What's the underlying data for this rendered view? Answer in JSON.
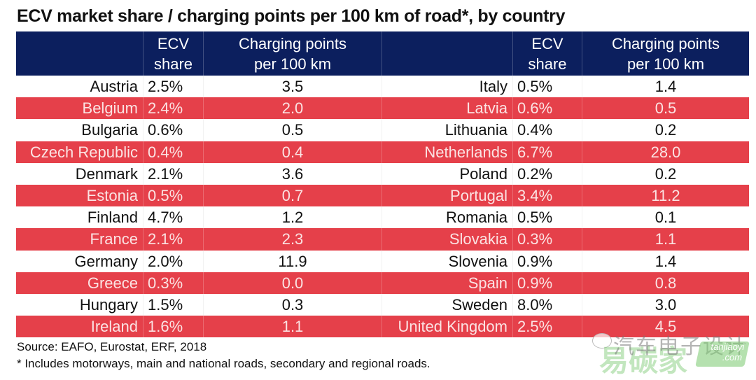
{
  "title": "ECV market share / charging points per 100 km of road*, by country",
  "header": {
    "ecv_line1": "ECV",
    "ecv_line2": "share",
    "cp_line1": "Charging points",
    "cp_line2": "per 100 km"
  },
  "colors": {
    "header_bg": "#0c1f5e",
    "stripe_red": "#e5404a",
    "stripe_white": "#ffffff"
  },
  "left_rows": [
    {
      "country": "Austria",
      "ecv_share": "2.5%",
      "charging_points": "3.5"
    },
    {
      "country": "Belgium",
      "ecv_share": "2.4%",
      "charging_points": "2.0"
    },
    {
      "country": "Bulgaria",
      "ecv_share": "0.6%",
      "charging_points": "0.5"
    },
    {
      "country": "Czech Republic",
      "ecv_share": "0.4%",
      "charging_points": "0.4"
    },
    {
      "country": "Denmark",
      "ecv_share": "2.1%",
      "charging_points": "3.6"
    },
    {
      "country": "Estonia",
      "ecv_share": "0.5%",
      "charging_points": "0.7"
    },
    {
      "country": "Finland",
      "ecv_share": "4.7%",
      "charging_points": "1.2"
    },
    {
      "country": "France",
      "ecv_share": "2.1%",
      "charging_points": "2.3"
    },
    {
      "country": "Germany",
      "ecv_share": "2.0%",
      "charging_points": "11.9"
    },
    {
      "country": "Greece",
      "ecv_share": "0.3%",
      "charging_points": "0.0"
    },
    {
      "country": "Hungary",
      "ecv_share": "1.5%",
      "charging_points": "0.3"
    },
    {
      "country": "Ireland",
      "ecv_share": "1.6%",
      "charging_points": "1.1"
    }
  ],
  "right_rows": [
    {
      "country": "Italy",
      "ecv_share": "0.5%",
      "charging_points": "1.4"
    },
    {
      "country": "Latvia",
      "ecv_share": "0.6%",
      "charging_points": "0.5"
    },
    {
      "country": "Lithuania",
      "ecv_share": "0.4%",
      "charging_points": "0.2"
    },
    {
      "country": "Netherlands",
      "ecv_share": "6.7%",
      "charging_points": "28.0"
    },
    {
      "country": "Poland",
      "ecv_share": "0.2%",
      "charging_points": "0.2"
    },
    {
      "country": "Portugal",
      "ecv_share": "3.4%",
      "charging_points": "11.2"
    },
    {
      "country": "Romania",
      "ecv_share": "0.5%",
      "charging_points": "0.1"
    },
    {
      "country": "Slovakia",
      "ecv_share": "0.3%",
      "charging_points": "1.1"
    },
    {
      "country": "Slovenia",
      "ecv_share": "0.9%",
      "charging_points": "1.4"
    },
    {
      "country": "Spain",
      "ecv_share": "0.9%",
      "charging_points": "0.8"
    },
    {
      "country": "Sweden",
      "ecv_share": "8.0%",
      "charging_points": "3.0"
    },
    {
      "country": "United Kingdom",
      "ecv_share": "2.5%",
      "charging_points": "4.5"
    }
  ],
  "footer": {
    "source": "Source: EAFO, Eurostat, ERF, 2018",
    "note": "* Includes motorways, main and national roads, secondary and regional roads."
  },
  "watermark": {
    "line1": "汽车电子设计",
    "line2": "易碳家",
    "badge_line1": "tanjiaoyi",
    "badge_line2": ".com"
  }
}
